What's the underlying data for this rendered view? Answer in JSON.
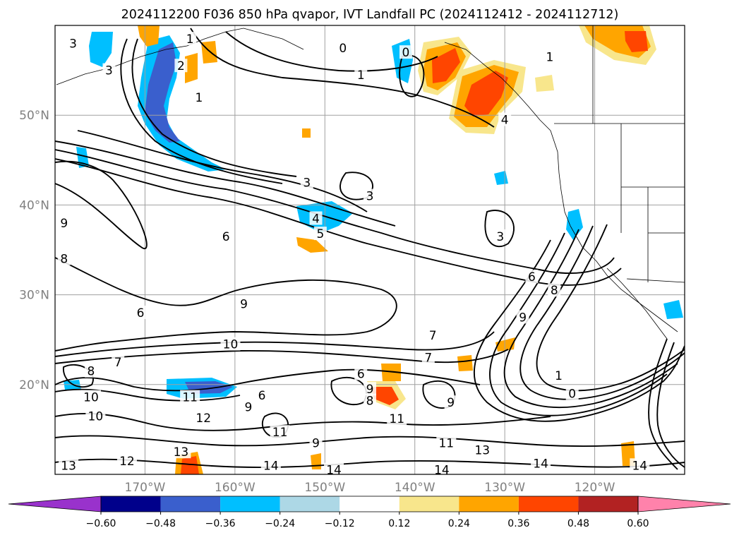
{
  "chart_data": {
    "type": "heatmap",
    "title": "2024112200 F036 850 hPa qvapor, IVT Landfall PC (2024112412 - 2024112712)",
    "lat_ticks": [
      "50°N",
      "40°N",
      "30°N",
      "20°N"
    ],
    "lat_values": [
      50,
      40,
      30,
      20
    ],
    "lon_ticks": [
      "170°W",
      "160°W",
      "150°W",
      "140°W",
      "130°W",
      "120°W"
    ],
    "lon_values": [
      -170,
      -160,
      -150,
      -140,
      -130,
      -120
    ],
    "xlim": [
      -180,
      -110
    ],
    "ylim": [
      10,
      60
    ],
    "grid": true,
    "shading_variable": "IVT Landfall PC",
    "contour_variable": "850 hPa qvapor",
    "colorbar": {
      "orientation": "horizontal",
      "extend": "both",
      "tick_labels": [
        "−0.60",
        "−0.48",
        "−0.36",
        "−0.24",
        "−0.12",
        "0.12",
        "0.24",
        "0.36",
        "0.48",
        "0.60"
      ],
      "bin_colors": [
        "#9932cc",
        "#00008b",
        "#3a5fcd",
        "#00bfff",
        "#add8e6",
        "#ffffff",
        "#f8e68c",
        "#ffa500",
        "#ff4500",
        "#b22222",
        "#ff82ab"
      ]
    },
    "contour_labels": [
      {
        "text": "3",
        "lon": -178,
        "lat": 58
      },
      {
        "text": "1",
        "lon": -165,
        "lat": 58.5
      },
      {
        "text": "2",
        "lon": -166,
        "lat": 55.5
      },
      {
        "text": "3",
        "lon": -174,
        "lat": 55
      },
      {
        "text": "1",
        "lon": -164,
        "lat": 52
      },
      {
        "text": "0",
        "lon": -148,
        "lat": 57.5
      },
      {
        "text": "1",
        "lon": -146,
        "lat": 54.5
      },
      {
        "text": "0",
        "lon": -141,
        "lat": 57
      },
      {
        "text": "1",
        "lon": -125,
        "lat": 56.5
      },
      {
        "text": "4",
        "lon": -130,
        "lat": 49.5
      },
      {
        "text": "3",
        "lon": -152,
        "lat": 42.5
      },
      {
        "text": "3",
        "lon": -145,
        "lat": 41
      },
      {
        "text": "4",
        "lon": -151,
        "lat": 38.5
      },
      {
        "text": "5",
        "lon": -150.5,
        "lat": 36.8
      },
      {
        "text": "6",
        "lon": -161,
        "lat": 36.5
      },
      {
        "text": "3",
        "lon": -130.5,
        "lat": 36.5
      },
      {
        "text": "9",
        "lon": -179,
        "lat": 38
      },
      {
        "text": "8",
        "lon": -179,
        "lat": 34
      },
      {
        "text": "6",
        "lon": -127,
        "lat": 32
      },
      {
        "text": "8",
        "lon": -124.5,
        "lat": 30.5
      },
      {
        "text": "9",
        "lon": -159,
        "lat": 29
      },
      {
        "text": "6",
        "lon": -170.5,
        "lat": 28
      },
      {
        "text": "9",
        "lon": -128,
        "lat": 27.5
      },
      {
        "text": "7",
        "lon": -138,
        "lat": 25.5
      },
      {
        "text": "10",
        "lon": -160.5,
        "lat": 24.5
      },
      {
        "text": "7",
        "lon": -138.5,
        "lat": 23
      },
      {
        "text": "7",
        "lon": -173,
        "lat": 22.5
      },
      {
        "text": "8",
        "lon": -176,
        "lat": 21.5
      },
      {
        "text": "6",
        "lon": -146,
        "lat": 21.2
      },
      {
        "text": "9",
        "lon": -145,
        "lat": 19.5
      },
      {
        "text": "6",
        "lon": -157,
        "lat": 18.8
      },
      {
        "text": "8",
        "lon": -145,
        "lat": 18.2
      },
      {
        "text": "1",
        "lon": -124,
        "lat": 21
      },
      {
        "text": "0",
        "lon": -122.5,
        "lat": 19
      },
      {
        "text": "10",
        "lon": -176,
        "lat": 18.6
      },
      {
        "text": "11",
        "lon": -165,
        "lat": 18.6
      },
      {
        "text": "9",
        "lon": -136,
        "lat": 18
      },
      {
        "text": "10",
        "lon": -175.5,
        "lat": 16.5
      },
      {
        "text": "9",
        "lon": -158.5,
        "lat": 17.5
      },
      {
        "text": "12",
        "lon": -163.5,
        "lat": 16.3
      },
      {
        "text": "11",
        "lon": -142,
        "lat": 16.2
      },
      {
        "text": "11",
        "lon": -155,
        "lat": 14.7
      },
      {
        "text": "9",
        "lon": -151,
        "lat": 13.5
      },
      {
        "text": "11",
        "lon": -136.5,
        "lat": 13.5
      },
      {
        "text": "13",
        "lon": -166,
        "lat": 12.5
      },
      {
        "text": "13",
        "lon": -132.5,
        "lat": 12.7
      },
      {
        "text": "12",
        "lon": -172,
        "lat": 11.5
      },
      {
        "text": "13",
        "lon": -178.5,
        "lat": 11
      },
      {
        "text": "14",
        "lon": -156,
        "lat": 11
      },
      {
        "text": "14",
        "lon": -149,
        "lat": 10.5
      },
      {
        "text": "14",
        "lon": -137,
        "lat": 10.5
      },
      {
        "text": "14",
        "lon": -126,
        "lat": 11.2
      },
      {
        "text": "14",
        "lon": -115,
        "lat": 11
      }
    ]
  }
}
